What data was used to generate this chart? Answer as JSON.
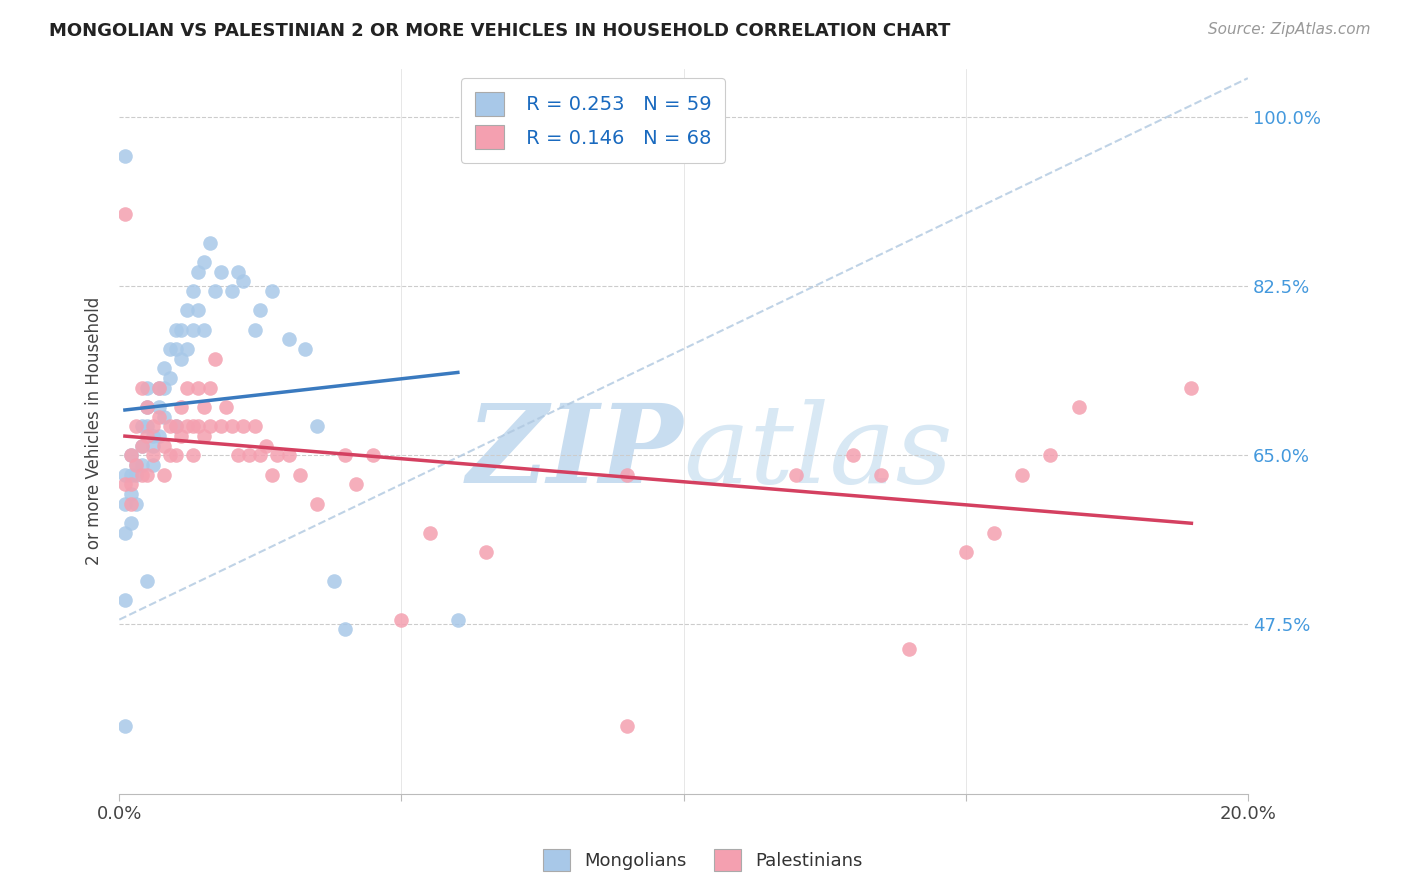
{
  "title": "MONGOLIAN VS PALESTINIAN 2 OR MORE VEHICLES IN HOUSEHOLD CORRELATION CHART",
  "source": "Source: ZipAtlas.com",
  "ylabel": "2 or more Vehicles in Household",
  "xlim": [
    0.0,
    0.2
  ],
  "ylim": [
    0.3,
    1.05
  ],
  "ytick_vals": [
    0.475,
    0.65,
    0.825,
    1.0
  ],
  "ytick_labels": [
    "47.5%",
    "65.0%",
    "82.5%",
    "100.0%"
  ],
  "xtick_vals": [
    0.0,
    0.05,
    0.1,
    0.15,
    0.2
  ],
  "xtick_labels": [
    "0.0%",
    "",
    "",
    "",
    "20.0%"
  ],
  "legend_r_mongolian": "R = 0.253",
  "legend_n_mongolian": "N = 59",
  "legend_r_palestinian": "R = 0.146",
  "legend_n_palestinian": "N = 68",
  "mongolian_color": "#a8c8e8",
  "palestinian_color": "#f4a0b0",
  "mongolian_line_color": "#3a7abf",
  "palestinian_line_color": "#d44060",
  "watermark_color": "#c8ddf0",
  "background_color": "#ffffff",
  "grid_color": "#cccccc",
  "mongolian_x": [
    0.001,
    0.001,
    0.001,
    0.001,
    0.001,
    0.002,
    0.002,
    0.002,
    0.002,
    0.003,
    0.003,
    0.003,
    0.004,
    0.004,
    0.004,
    0.005,
    0.005,
    0.005,
    0.005,
    0.006,
    0.006,
    0.006,
    0.007,
    0.007,
    0.007,
    0.008,
    0.008,
    0.008,
    0.009,
    0.009,
    0.01,
    0.01,
    0.01,
    0.011,
    0.011,
    0.012,
    0.012,
    0.013,
    0.013,
    0.014,
    0.014,
    0.015,
    0.015,
    0.016,
    0.017,
    0.018,
    0.02,
    0.021,
    0.022,
    0.024,
    0.025,
    0.027,
    0.03,
    0.033,
    0.035,
    0.038,
    0.04,
    0.001,
    0.06
  ],
  "mongolian_y": [
    0.96,
    0.63,
    0.6,
    0.57,
    0.5,
    0.65,
    0.63,
    0.61,
    0.58,
    0.64,
    0.63,
    0.6,
    0.68,
    0.66,
    0.64,
    0.72,
    0.7,
    0.68,
    0.52,
    0.67,
    0.66,
    0.64,
    0.72,
    0.7,
    0.67,
    0.74,
    0.72,
    0.69,
    0.76,
    0.73,
    0.78,
    0.76,
    0.68,
    0.78,
    0.75,
    0.8,
    0.76,
    0.82,
    0.78,
    0.84,
    0.8,
    0.85,
    0.78,
    0.87,
    0.82,
    0.84,
    0.82,
    0.84,
    0.83,
    0.78,
    0.8,
    0.82,
    0.77,
    0.76,
    0.68,
    0.52,
    0.47,
    0.37,
    0.48
  ],
  "palestinian_x": [
    0.001,
    0.001,
    0.002,
    0.002,
    0.003,
    0.003,
    0.004,
    0.004,
    0.004,
    0.005,
    0.005,
    0.005,
    0.006,
    0.006,
    0.007,
    0.007,
    0.008,
    0.008,
    0.009,
    0.009,
    0.01,
    0.01,
    0.011,
    0.011,
    0.012,
    0.012,
    0.013,
    0.013,
    0.014,
    0.014,
    0.015,
    0.015,
    0.016,
    0.016,
    0.017,
    0.018,
    0.019,
    0.02,
    0.021,
    0.022,
    0.023,
    0.024,
    0.025,
    0.026,
    0.027,
    0.028,
    0.03,
    0.032,
    0.035,
    0.04,
    0.042,
    0.045,
    0.05,
    0.055,
    0.065,
    0.09,
    0.12,
    0.13,
    0.135,
    0.14,
    0.15,
    0.155,
    0.16,
    0.165,
    0.17,
    0.002,
    0.09,
    0.19
  ],
  "palestinian_y": [
    0.9,
    0.62,
    0.65,
    0.62,
    0.68,
    0.64,
    0.72,
    0.66,
    0.63,
    0.7,
    0.67,
    0.63,
    0.68,
    0.65,
    0.72,
    0.69,
    0.66,
    0.63,
    0.68,
    0.65,
    0.68,
    0.65,
    0.7,
    0.67,
    0.72,
    0.68,
    0.68,
    0.65,
    0.72,
    0.68,
    0.7,
    0.67,
    0.72,
    0.68,
    0.75,
    0.68,
    0.7,
    0.68,
    0.65,
    0.68,
    0.65,
    0.68,
    0.65,
    0.66,
    0.63,
    0.65,
    0.65,
    0.63,
    0.6,
    0.65,
    0.62,
    0.65,
    0.48,
    0.57,
    0.55,
    0.63,
    0.63,
    0.65,
    0.63,
    0.45,
    0.55,
    0.57,
    0.63,
    0.65,
    0.7,
    0.6,
    0.37,
    0.72
  ]
}
